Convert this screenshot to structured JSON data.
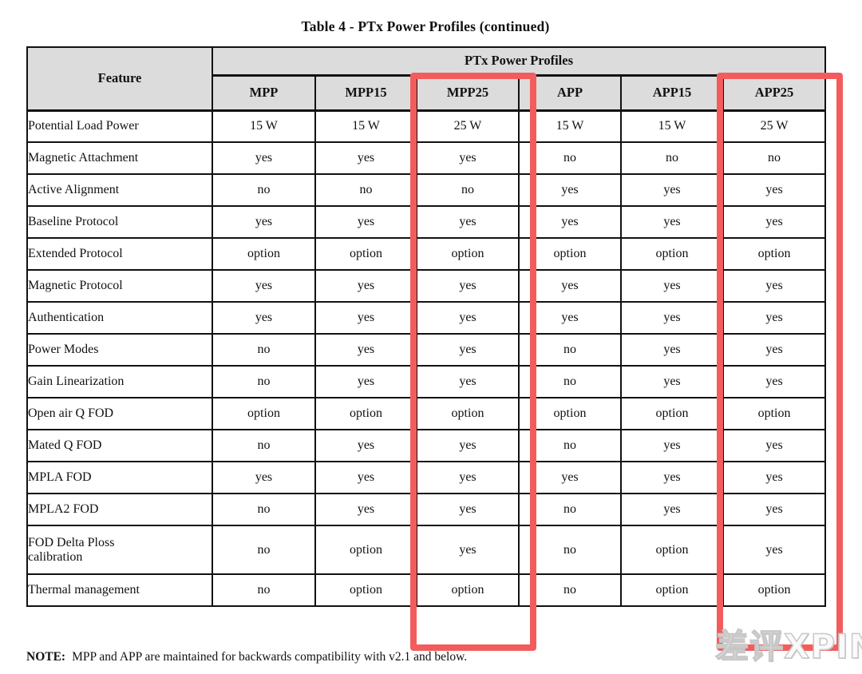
{
  "page_title": "Table 4 - PTx Power Profiles (continued)",
  "table": {
    "feature_header": "Feature",
    "group_header": "PTx Power Profiles",
    "columns": [
      "MPP",
      "MPP15",
      "MPP25",
      "APP",
      "APP15",
      "APP25"
    ],
    "highlighted_columns": [
      "MPP25",
      "APP25"
    ],
    "rows": [
      {
        "feature": "Potential Load Power",
        "values": [
          "15 W",
          "15 W",
          "25 W",
          "15 W",
          "15 W",
          "25 W"
        ]
      },
      {
        "feature": "Magnetic Attachment",
        "values": [
          "yes",
          "yes",
          "yes",
          "no",
          "no",
          "no"
        ]
      },
      {
        "feature": "Active Alignment",
        "values": [
          "no",
          "no",
          "no",
          "yes",
          "yes",
          "yes"
        ]
      },
      {
        "feature": "Baseline Protocol",
        "values": [
          "yes",
          "yes",
          "yes",
          "yes",
          "yes",
          "yes"
        ]
      },
      {
        "feature": "Extended Protocol",
        "values": [
          "option",
          "option",
          "option",
          "option",
          "option",
          "option"
        ]
      },
      {
        "feature": "Magnetic Protocol",
        "values": [
          "yes",
          "yes",
          "yes",
          "yes",
          "yes",
          "yes"
        ]
      },
      {
        "feature": "Authentication",
        "values": [
          "yes",
          "yes",
          "yes",
          "yes",
          "yes",
          "yes"
        ]
      },
      {
        "feature": "Power Modes",
        "values": [
          "no",
          "yes",
          "yes",
          "no",
          "yes",
          "yes"
        ]
      },
      {
        "feature": "Gain Linearization",
        "values": [
          "no",
          "yes",
          "yes",
          "no",
          "yes",
          "yes"
        ]
      },
      {
        "feature": "Open air Q FOD",
        "values": [
          "option",
          "option",
          "option",
          "option",
          "option",
          "option"
        ]
      },
      {
        "feature": "Mated Q FOD",
        "values": [
          "no",
          "yes",
          "yes",
          "no",
          "yes",
          "yes"
        ]
      },
      {
        "feature": "MPLA FOD",
        "values": [
          "yes",
          "yes",
          "yes",
          "yes",
          "yes",
          "yes"
        ]
      },
      {
        "feature": "MPLA2 FOD",
        "values": [
          "no",
          "yes",
          "yes",
          "no",
          "yes",
          "yes"
        ]
      },
      {
        "feature": "FOD Delta Ploss\ncalibration",
        "values": [
          "no",
          "option",
          "yes",
          "no",
          "option",
          "yes"
        ]
      },
      {
        "feature": "Thermal management",
        "values": [
          "no",
          "option",
          "option",
          "no",
          "option",
          "option"
        ]
      }
    ]
  },
  "note": {
    "label": "NOTE:",
    "text": "MPP and APP are maintained for backwards compatibility with v2.1 and below."
  },
  "watermark": "差评XPIN",
  "colors": {
    "highlight_red": "#f25c5c",
    "header_bg": "#dcdcdc",
    "border_black": "#111111"
  }
}
